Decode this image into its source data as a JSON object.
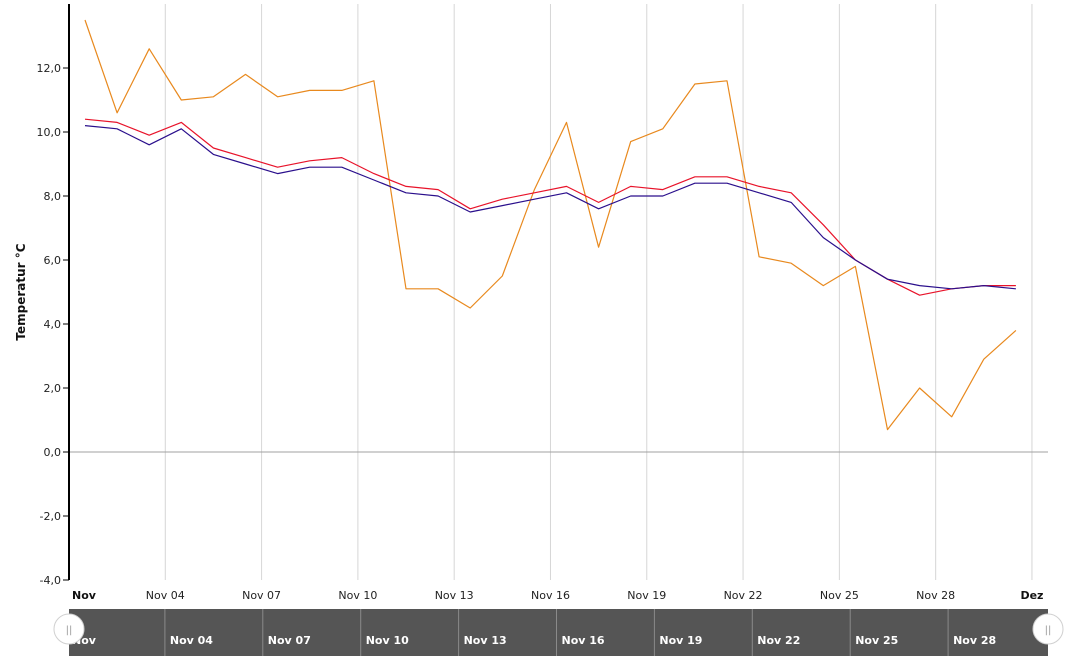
{
  "chart_data": {
    "type": "line",
    "ylabel": "Temperatur °C",
    "ylim": [
      -4,
      14
    ],
    "yticks": [
      -4,
      -2,
      0,
      2,
      4,
      6,
      8,
      10,
      12
    ],
    "ytick_labels": [
      "-4,0",
      "-2,0",
      "0,0",
      "2,0",
      "4,0",
      "6,0",
      "8,0",
      "10,0",
      "12,0"
    ],
    "xlim": [
      1,
      31.5
    ],
    "xticks": [
      1,
      4,
      7,
      10,
      13,
      16,
      19,
      22,
      25,
      28,
      31
    ],
    "xtick_labels": [
      "Nov",
      "Nov 04",
      "Nov 07",
      "Nov 10",
      "Nov 13",
      "Nov 16",
      "Nov 19",
      "Nov 22",
      "Nov 25",
      "Nov 28",
      "Dez"
    ],
    "grid": true,
    "x": [
      1.5,
      2.5,
      3.5,
      4.5,
      5.5,
      6.5,
      7.5,
      8.5,
      9.5,
      10.5,
      11.5,
      12.5,
      13.5,
      14.5,
      15.5,
      16.5,
      17.5,
      18.5,
      19.5,
      20.5,
      21.5,
      22.5,
      23.5,
      24.5,
      25.5,
      26.5,
      27.5,
      28.5,
      29.5,
      30.5
    ],
    "series": [
      {
        "color": "#e8891e",
        "values": [
          13.5,
          10.6,
          12.6,
          11.0,
          11.1,
          11.8,
          11.1,
          11.3,
          11.3,
          11.6,
          5.1,
          5.1,
          4.5,
          5.5,
          8.2,
          10.3,
          6.4,
          9.7,
          10.1,
          11.5,
          11.6,
          6.1,
          5.9,
          5.2,
          5.8,
          0.7,
          2.0,
          1.1,
          2.9,
          3.8
        ]
      },
      {
        "color": "#e8132a",
        "values": [
          10.4,
          10.3,
          9.9,
          10.3,
          9.5,
          9.2,
          8.9,
          9.1,
          9.2,
          8.7,
          8.3,
          8.2,
          7.6,
          7.9,
          8.1,
          8.3,
          7.8,
          8.3,
          8.2,
          8.6,
          8.6,
          8.3,
          8.1,
          7.1,
          6.0,
          5.4,
          4.9,
          5.1,
          5.2,
          5.2
        ]
      },
      {
        "color": "#2a0f8c",
        "values": [
          10.2,
          10.1,
          9.6,
          10.1,
          9.3,
          9.0,
          8.7,
          8.9,
          8.9,
          8.5,
          8.1,
          8.0,
          7.5,
          7.7,
          7.9,
          8.1,
          7.6,
          8.0,
          8.0,
          8.4,
          8.4,
          8.1,
          7.8,
          6.7,
          6.0,
          5.4,
          5.2,
          5.1,
          5.2,
          5.1
        ]
      }
    ],
    "navigator": {
      "labels": [
        "Nov",
        "Nov 04",
        "Nov 07",
        "Nov 10",
        "Nov 13",
        "Nov 16",
        "Nov 19",
        "Nov 22",
        "Nov 25",
        "Nov 28"
      ],
      "fill_color": "#555555",
      "handle_glyph": "||"
    }
  }
}
